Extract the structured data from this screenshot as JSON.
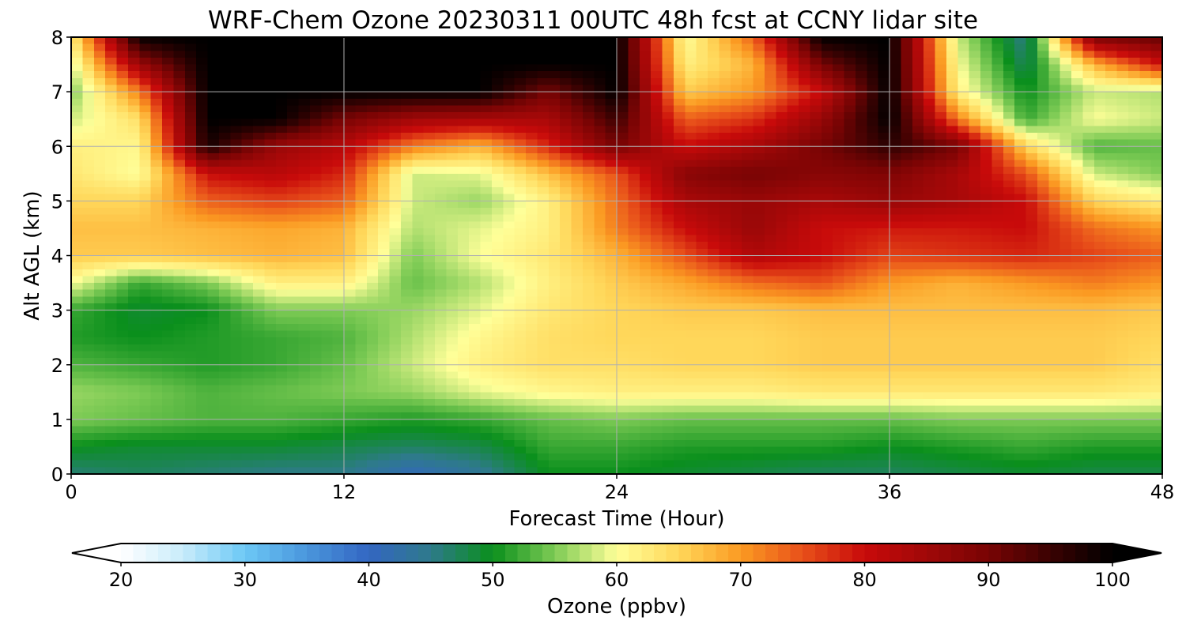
{
  "chart_data": {
    "type": "heatmap",
    "title": "WRF-Chem Ozone  20230311 00UTC 48h fcst at CCNY lidar site",
    "xlabel": "Forecast Time (Hour)",
    "ylabel": "Alt AGL (km)",
    "xlim": [
      0,
      48
    ],
    "ylim": [
      0,
      8
    ],
    "xticks": [
      "0",
      "12",
      "24",
      "36",
      "48"
    ],
    "yticks": [
      "0",
      "1",
      "2",
      "3",
      "4",
      "5",
      "6",
      "7",
      "8"
    ],
    "grid": true,
    "x_hours": [
      0,
      3,
      6,
      9,
      12,
      15,
      18,
      21,
      24,
      27,
      30,
      33,
      36,
      39,
      42,
      45,
      48
    ],
    "y_km": [
      0,
      0.5,
      1,
      1.5,
      2,
      2.5,
      3,
      3.5,
      4,
      4.5,
      5,
      5.5,
      6,
      6.5,
      7,
      7.5,
      8
    ],
    "z_ppbv": [
      [
        46,
        47,
        46,
        45,
        45,
        41,
        44,
        50,
        50,
        49,
        48,
        47,
        47,
        48,
        49,
        48,
        48
      ],
      [
        50,
        49,
        49,
        49,
        48,
        47,
        48,
        52,
        52,
        51,
        51,
        51,
        50,
        51,
        52,
        51,
        51
      ],
      [
        55,
        54,
        53,
        53,
        52,
        51,
        52,
        54,
        55,
        54,
        54,
        54,
        54,
        55,
        55,
        55,
        55
      ],
      [
        56,
        55,
        53,
        54,
        55,
        56,
        59,
        61,
        62,
        62,
        62,
        63,
        63,
        63,
        63,
        63,
        62
      ],
      [
        53,
        52,
        51,
        52,
        54,
        58,
        62,
        64,
        64,
        65,
        65,
        66,
        66,
        66,
        66,
        66,
        64
      ],
      [
        51,
        50,
        51,
        52,
        53,
        57,
        61,
        64,
        65,
        65,
        65,
        66,
        66,
        66,
        66,
        66,
        65
      ],
      [
        52,
        49,
        50,
        55,
        55,
        56,
        59,
        63,
        65,
        66,
        66,
        67,
        67,
        67,
        67,
        67,
        66
      ],
      [
        60,
        52,
        55,
        62,
        62,
        54,
        57,
        62,
        66,
        69,
        73,
        75,
        70,
        68,
        70,
        72,
        70
      ],
      [
        66,
        66,
        67,
        68,
        67,
        55,
        60,
        63,
        68,
        75,
        83,
        80,
        76,
        77,
        78,
        76,
        74
      ],
      [
        67,
        67,
        68,
        69,
        68,
        57,
        59,
        62,
        72,
        80,
        86,
        80,
        79,
        79,
        80,
        73,
        70
      ],
      [
        65,
        65,
        74,
        76,
        74,
        58,
        56,
        62,
        73,
        84,
        86,
        84,
        86,
        84,
        80,
        65,
        62
      ],
      [
        63,
        60,
        80,
        82,
        78,
        58,
        59,
        67,
        75,
        88,
        90,
        88,
        89,
        84,
        75,
        58,
        55
      ],
      [
        62,
        61,
        98,
        86,
        82,
        72,
        68,
        78,
        90,
        80,
        84,
        90,
        96,
        90,
        65,
        53,
        54
      ],
      [
        58,
        64,
        100,
        100,
        90,
        85,
        84,
        84,
        95,
        74,
        77,
        86,
        100,
        72,
        52,
        60,
        58
      ],
      [
        55,
        72,
        100,
        100,
        100,
        100,
        100,
        90,
        100,
        66,
        70,
        80,
        100,
        62,
        50,
        58,
        57
      ],
      [
        58,
        86,
        100,
        100,
        100,
        100,
        100,
        100,
        100,
        62,
        68,
        90,
        100,
        60,
        47,
        68,
        80
      ],
      [
        62,
        100,
        100,
        100,
        100,
        100,
        100,
        100,
        100,
        60,
        74,
        100,
        100,
        58,
        45,
        90,
        92
      ]
    ],
    "colorbar": {
      "label": "Ozone  (ppbv)",
      "range": [
        20,
        100
      ],
      "ticks": [
        "20",
        "30",
        "40",
        "50",
        "60",
        "70",
        "80",
        "90",
        "100"
      ],
      "extend": "both",
      "stops": [
        [
          20,
          "#ffffff"
        ],
        [
          25,
          "#c8ecfa"
        ],
        [
          30,
          "#6cc8f5"
        ],
        [
          35,
          "#4a96dc"
        ],
        [
          40,
          "#3366c2"
        ],
        [
          45,
          "#2e7a8a"
        ],
        [
          50,
          "#0a8f1c"
        ],
        [
          55,
          "#7ecb55"
        ],
        [
          60,
          "#ffff99"
        ],
        [
          65,
          "#ffd75a"
        ],
        [
          70,
          "#fb9a22"
        ],
        [
          75,
          "#e8501a"
        ],
        [
          80,
          "#c80a0a"
        ],
        [
          85,
          "#a00808"
        ],
        [
          90,
          "#780404"
        ],
        [
          95,
          "#3a0202"
        ],
        [
          100,
          "#000000"
        ]
      ]
    }
  }
}
